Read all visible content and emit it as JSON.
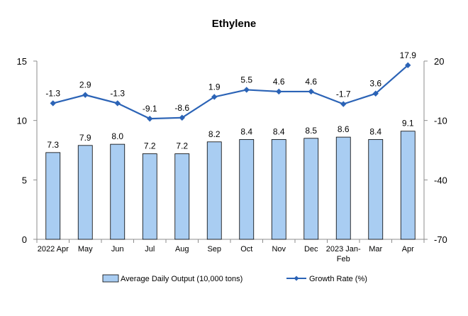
{
  "chart_data": {
    "type": "bar+line",
    "title": "Ethylene",
    "categories": [
      "2022 Apr",
      "May",
      "Jun",
      "Jul",
      "Aug",
      "Sep",
      "Oct",
      "Nov",
      "Dec",
      "2023 Jan-Feb",
      "Mar",
      "Apr"
    ],
    "category_lines": [
      [
        "2022 Apr"
      ],
      [
        "May"
      ],
      [
        "Jun"
      ],
      [
        "Jul"
      ],
      [
        "Aug"
      ],
      [
        "Sep"
      ],
      [
        "Oct"
      ],
      [
        "Nov"
      ],
      [
        "Dec"
      ],
      [
        "2023 Jan-",
        "Feb"
      ],
      [
        "Mar"
      ],
      [
        "Apr"
      ]
    ],
    "series": [
      {
        "name": "Average Daily Output (10,000 tons)",
        "type": "bar",
        "axis": "left",
        "color": "#a9cdf2",
        "values": [
          7.3,
          7.9,
          8.0,
          7.2,
          7.2,
          8.2,
          8.4,
          8.4,
          8.5,
          8.6,
          8.4,
          9.1
        ],
        "labels": [
          "7.3",
          "7.9",
          "8.0",
          "7.2",
          "7.2",
          "8.2",
          "8.4",
          "8.4",
          "8.5",
          "8.6",
          "8.4",
          "9.1"
        ]
      },
      {
        "name": "Growth Rate (%)",
        "type": "line",
        "axis": "right",
        "color": "#2b63b6",
        "values": [
          -1.3,
          2.9,
          -1.3,
          -9.1,
          -8.6,
          1.9,
          5.5,
          4.6,
          4.6,
          -1.7,
          3.6,
          17.9
        ],
        "labels": [
          "-1.3",
          "2.9",
          "-1.3",
          "-9.1",
          "-8.6",
          "1.9",
          "5.5",
          "4.6",
          "4.6",
          "-1.7",
          "3.6",
          "17.9"
        ]
      }
    ],
    "y_left": {
      "range": [
        0,
        15
      ],
      "ticks": [
        0,
        5,
        10,
        15
      ],
      "tick_labels": [
        "0",
        "5",
        "10",
        "15"
      ]
    },
    "y_right": {
      "range": [
        -70,
        20
      ],
      "ticks": [
        -70,
        -40,
        -10,
        20
      ],
      "tick_labels": [
        "-70",
        "-40",
        "-10",
        "20"
      ]
    },
    "grid": false,
    "legend_position": "bottom"
  }
}
